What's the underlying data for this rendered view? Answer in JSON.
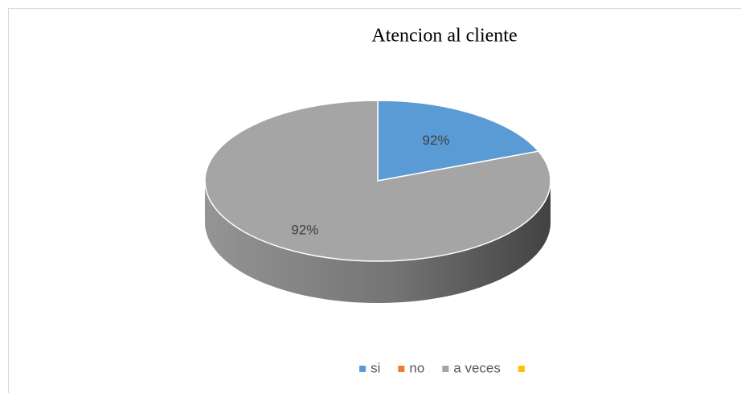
{
  "chart_data": {
    "type": "pie3d",
    "title": "Atencion al cliente",
    "categories": [
      "si",
      "no",
      "a veces",
      null
    ],
    "values": [
      19,
      0,
      81,
      0
    ],
    "colors": [
      "#5b9bd5",
      "#ed7d31",
      "#a5a5a5",
      "#ffc000"
    ],
    "annotations": [
      "92%",
      "92%"
    ],
    "legend": "bottom"
  }
}
